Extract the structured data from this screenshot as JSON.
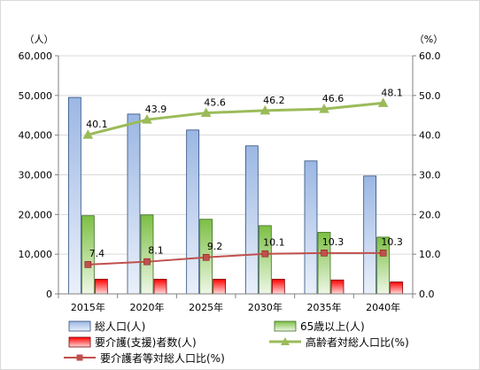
{
  "chart_data": {
    "type": "bar",
    "categories": [
      "2015年",
      "2020年",
      "2025年",
      "2030年",
      "2035年",
      "2040年"
    ],
    "y_left": {
      "unit_label": "（人）",
      "ylim": [
        0,
        60000
      ],
      "ticks": [
        {
          "value": 0,
          "label": "0"
        },
        {
          "value": 10000,
          "label": "10,000"
        },
        {
          "value": 20000,
          "label": "20,000"
        },
        {
          "value": 30000,
          "label": "30,000"
        },
        {
          "value": 40000,
          "label": "40,000"
        },
        {
          "value": 50000,
          "label": "50,000"
        },
        {
          "value": 60000,
          "label": "60,000"
        }
      ]
    },
    "y_right": {
      "unit_label": "（%）",
      "ylim": [
        0,
        60
      ],
      "ticks": [
        {
          "value": 0,
          "label": "0.0"
        },
        {
          "value": 10,
          "label": "10.0"
        },
        {
          "value": 20,
          "label": "20.0"
        },
        {
          "value": 30,
          "label": "30.0"
        },
        {
          "value": 40,
          "label": "40.0"
        },
        {
          "value": 50,
          "label": "50.0"
        },
        {
          "value": 60,
          "label": "60.0"
        }
      ]
    },
    "grid": true,
    "bar_series": [
      {
        "name": "総人口(人)",
        "values": [
          49500,
          45300,
          41300,
          37300,
          33500,
          29700
        ],
        "color": "#9bb7e3",
        "fade": "#eaf0fa",
        "stroke": "#2b4c7e"
      },
      {
        "name": "65歳以上(人)",
        "values": [
          19700,
          19900,
          18800,
          17200,
          15500,
          14300
        ],
        "color": "#7cbf44",
        "fade": "#eef7e6",
        "stroke": "#3d6b1f"
      },
      {
        "name": "要介護(支援)者数(人)",
        "values": [
          3700,
          3700,
          3700,
          3700,
          3500,
          3000
        ],
        "color": "#ff0000",
        "fade": "#ffd9d9",
        "stroke": "#800000"
      }
    ],
    "line_series": [
      {
        "name": "高齢者対総人口比(%)",
        "values": [
          40.1,
          43.9,
          45.6,
          46.2,
          46.6,
          48.1
        ],
        "labels": [
          "40.1",
          "43.9",
          "45.6",
          "46.2",
          "46.6",
          "48.1"
        ],
        "color": "#9bbb59",
        "marker": "triangle"
      },
      {
        "name": "要介護者等対総人口比(%)",
        "values": [
          7.4,
          8.1,
          9.2,
          10.1,
          10.3,
          10.3
        ],
        "labels": [
          "7.4",
          "8.1",
          "9.2",
          "10.1",
          "10.3",
          "10.3"
        ],
        "color": "#c0504d",
        "marker": "square"
      }
    ],
    "legend": "bottom"
  }
}
